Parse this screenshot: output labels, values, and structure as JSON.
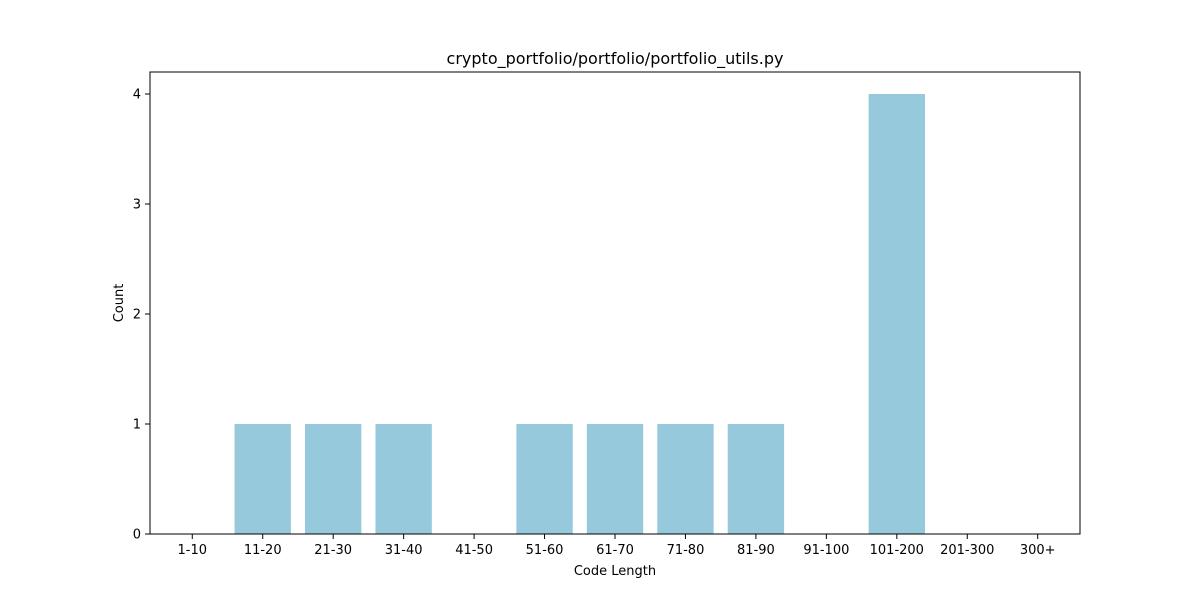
{
  "chart_data": {
    "type": "bar",
    "title": "crypto_portfolio/portfolio/portfolio_utils.py",
    "xlabel": "Code Length",
    "ylabel": "Count",
    "categories": [
      "1-10",
      "11-20",
      "21-30",
      "31-40",
      "41-50",
      "51-60",
      "61-70",
      "71-80",
      "81-90",
      "91-100",
      "101-200",
      "201-300",
      "300+"
    ],
    "values": [
      0,
      1,
      1,
      1,
      0,
      1,
      1,
      1,
      1,
      0,
      4,
      0,
      0
    ],
    "yticks": [
      0,
      1,
      2,
      3,
      4
    ],
    "ylim": [
      0,
      4.2
    ],
    "bar_color": "#96c9dc",
    "grid": false,
    "legend": "none"
  }
}
